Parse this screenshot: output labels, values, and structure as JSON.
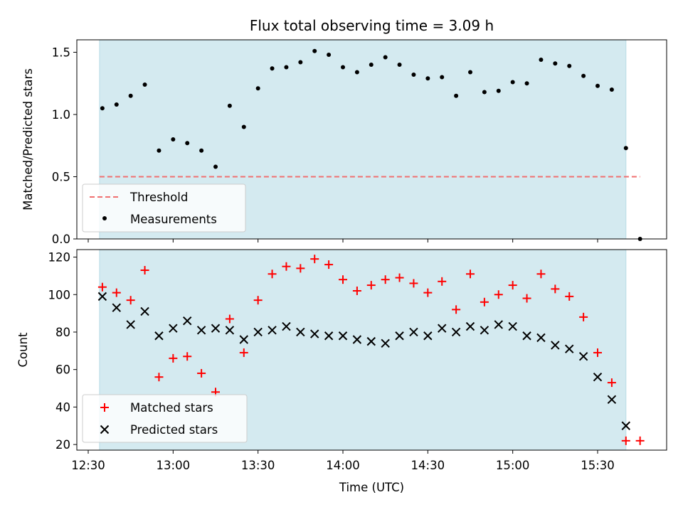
{
  "chart_data": [
    {
      "type": "scatter",
      "title": "Flux total observing time = 3.09 h",
      "ylabel": "Matched/Predicted stars",
      "xlabel": "",
      "ylim": [
        0,
        1.6
      ],
      "yticks": [
        0.0,
        0.5,
        1.0,
        1.5
      ],
      "ytick_labels": [
        "0.0",
        "0.5",
        "1.0",
        "1.5"
      ],
      "observing_window": [
        "12:34",
        "15:40"
      ],
      "threshold": {
        "name": "Threshold",
        "value": 0.5,
        "color": "#f07070",
        "x_range": [
          "12:34",
          "15:45"
        ]
      },
      "series": [
        {
          "name": "Measurements",
          "marker": "dot",
          "color": "#000000",
          "x": [
            "12:35",
            "12:40",
            "12:45",
            "12:50",
            "12:55",
            "13:00",
            "13:05",
            "13:10",
            "13:15",
            "13:20",
            "13:25",
            "13:30",
            "13:35",
            "13:40",
            "13:45",
            "13:50",
            "13:55",
            "14:00",
            "14:05",
            "14:10",
            "14:15",
            "14:20",
            "14:25",
            "14:30",
            "14:35",
            "14:40",
            "14:45",
            "14:50",
            "14:55",
            "15:00",
            "15:05",
            "15:10",
            "15:15",
            "15:20",
            "15:25",
            "15:30",
            "15:35",
            "15:40",
            "15:45"
          ],
          "y": [
            1.05,
            1.08,
            1.15,
            1.24,
            0.71,
            0.8,
            0.77,
            0.71,
            0.58,
            1.07,
            0.9,
            1.21,
            1.37,
            1.38,
            1.42,
            1.51,
            1.48,
            1.38,
            1.34,
            1.4,
            1.46,
            1.4,
            1.32,
            1.29,
            1.3,
            1.15,
            1.34,
            1.18,
            1.19,
            1.26,
            1.25,
            1.44,
            1.41,
            1.39,
            1.31,
            1.23,
            1.2,
            0.73,
            0.0
          ]
        }
      ]
    },
    {
      "type": "scatter",
      "title": "",
      "ylabel": "Count",
      "xlabel": "Time (UTC)",
      "ylim": [
        17,
        124
      ],
      "yticks": [
        20,
        40,
        60,
        80,
        100,
        120
      ],
      "ytick_labels": [
        "20",
        "40",
        "60",
        "80",
        "100",
        "120"
      ],
      "xticks": [
        "12:30",
        "13:00",
        "13:30",
        "14:00",
        "14:30",
        "15:00",
        "15:30"
      ],
      "xtick_labels": [
        "12:30",
        "13:00",
        "13:30",
        "14:00",
        "14:30",
        "15:00",
        "15:30"
      ],
      "observing_window": [
        "12:34",
        "15:40"
      ],
      "series": [
        {
          "name": "Matched stars",
          "marker": "plus",
          "color": "#ff0000",
          "x": [
            "12:35",
            "12:40",
            "12:45",
            "12:50",
            "12:55",
            "13:00",
            "13:05",
            "13:10",
            "13:15",
            "13:20",
            "13:25",
            "13:30",
            "13:35",
            "13:40",
            "13:45",
            "13:50",
            "13:55",
            "14:00",
            "14:05",
            "14:10",
            "14:15",
            "14:20",
            "14:25",
            "14:30",
            "14:35",
            "14:40",
            "14:45",
            "14:50",
            "14:55",
            "15:00",
            "15:05",
            "15:10",
            "15:15",
            "15:20",
            "15:25",
            "15:30",
            "15:35",
            "15:40",
            "15:45"
          ],
          "y": [
            104,
            101,
            97,
            113,
            56,
            66,
            67,
            58,
            48,
            87,
            69,
            97,
            111,
            115,
            114,
            119,
            116,
            108,
            102,
            105,
            108,
            109,
            106,
            101,
            107,
            92,
            111,
            96,
            100,
            105,
            98,
            111,
            103,
            99,
            88,
            69,
            53,
            22,
            22
          ]
        },
        {
          "name": "Predicted stars",
          "marker": "x",
          "color": "#000000",
          "x": [
            "12:35",
            "12:40",
            "12:45",
            "12:50",
            "12:55",
            "13:00",
            "13:05",
            "13:10",
            "13:15",
            "13:20",
            "13:25",
            "13:30",
            "13:35",
            "13:40",
            "13:45",
            "13:50",
            "13:55",
            "14:00",
            "14:05",
            "14:10",
            "14:15",
            "14:20",
            "14:25",
            "14:30",
            "14:35",
            "14:40",
            "14:45",
            "14:50",
            "14:55",
            "15:00",
            "15:05",
            "15:10",
            "15:15",
            "15:20",
            "15:25",
            "15:30",
            "15:35",
            "15:40"
          ],
          "y": [
            99,
            93,
            84,
            91,
            78,
            82,
            86,
            81,
            82,
            81,
            76,
            80,
            81,
            83,
            80,
            79,
            78,
            78,
            76,
            75,
            74,
            78,
            80,
            78,
            82,
            80,
            83,
            81,
            84,
            83,
            78,
            77,
            73,
            71,
            67,
            56,
            44,
            30
          ]
        }
      ]
    }
  ],
  "colors": {
    "window_fill": "#d4eaf0",
    "window_edge": "#b8dce6",
    "frame": "#000000"
  }
}
